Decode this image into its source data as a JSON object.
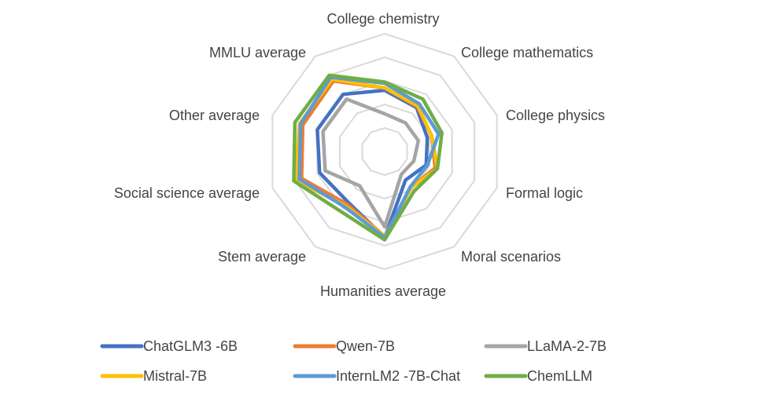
{
  "chart_data": {
    "type": "radar",
    "title": "",
    "axes": [
      "College chemistry",
      "College mathematics",
      "College physics",
      "Formal logic",
      "Moral scenarios",
      "Humanities average",
      "Stem average",
      "Social science average",
      "Other average",
      "MMLU average"
    ],
    "rlim": [
      0,
      100
    ],
    "grid": true,
    "legend_position": "bottom",
    "series": [
      {
        "name": "ChatGLM3 -6B",
        "color": "#4472C4",
        "values": [
          52,
          46,
          38,
          37,
          30,
          73,
          53,
          58,
          60,
          60
        ]
      },
      {
        "name": "Qwen-7B",
        "color": "#ED7D31",
        "values": [
          54,
          47,
          42,
          45,
          38,
          72,
          55,
          74,
          73,
          74
        ]
      },
      {
        "name": "LLaMA-2-7B",
        "color": "#A5A5A5",
        "values": [
          32,
          30,
          30,
          26,
          24,
          64,
          36,
          53,
          55,
          55
        ]
      },
      {
        "name": "Mistral-7B",
        "color": "#FFC000",
        "values": [
          54,
          48,
          42,
          47,
          38,
          72,
          57,
          79,
          76,
          76
        ]
      },
      {
        "name": "InternLM2 -7B-Chat",
        "color": "#5B9BD5",
        "values": [
          58,
          50,
          48,
          38,
          37,
          73,
          58,
          76,
          75,
          78
        ]
      },
      {
        "name": "ChemLLM",
        "color": "#70AD47",
        "values": [
          59,
          55,
          51,
          47,
          42,
          75,
          63,
          81,
          80,
          80
        ]
      }
    ]
  }
}
